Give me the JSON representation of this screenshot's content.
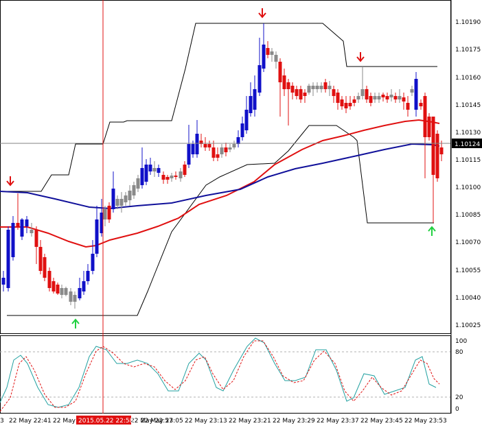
{
  "chart": {
    "price_axis": [
      "1.10190",
      "1.10175",
      "1.10160",
      "1.10145",
      "1.10130",
      "1.10115",
      "1.10100",
      "1.10085",
      "1.10070",
      "1.10055",
      "1.10040",
      "1.10025"
    ],
    "current_price": "1.10124",
    "osc_axis": [
      "100",
      "80",
      "20",
      "0"
    ],
    "time_axis": [
      "3",
      "22 May 22:41",
      "22 May",
      "22 May 22:57",
      "22 May 23:05",
      "22 May 23:13",
      "22 May 23:21",
      "22 May 23:29",
      "22 May 23:37",
      "22 May 23:45",
      "22 May 23:53"
    ],
    "crosshair_time": "2015.05.22 22:58",
    "colors": {
      "bull": "#1010c8",
      "bear": "#e01010",
      "doji": "#8a8a8a",
      "ma_fast": "#e01010",
      "ma_slow": "#10109a",
      "channel": "#000000",
      "stoch_main": "#20a0a0",
      "stoch_signal": "#e01010",
      "arrow_down": "#e01010",
      "arrow_up": "#20d040"
    }
  }
}
